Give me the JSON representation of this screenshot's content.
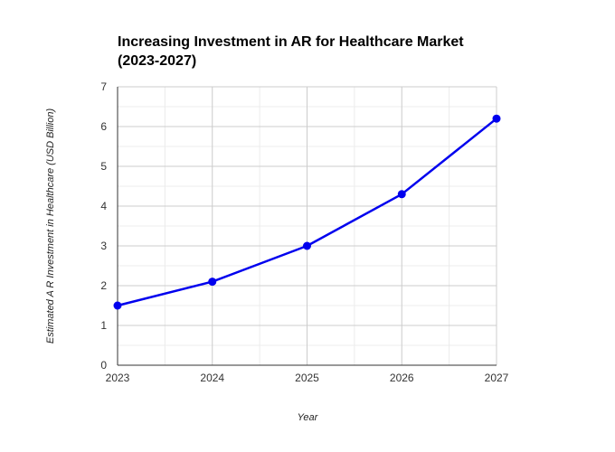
{
  "chart_data": {
    "type": "line",
    "title_lines": [
      "Increasing Investment in AR for Healthcare Market",
      "(2023-2027)"
    ],
    "xlabel": "Year",
    "ylabel": "Estimated A R Investment in Healthcare (USD Billion)",
    "x": [
      "2023",
      "2024",
      "2025",
      "2026",
      "2027"
    ],
    "series": [
      {
        "values": [
          1.5,
          2.1,
          3.0,
          4.3,
          6.2
        ],
        "color": "#0000ee"
      }
    ],
    "ylim": [
      0,
      7
    ],
    "yticks": [
      0,
      1,
      2,
      3,
      4,
      5,
      6,
      7
    ],
    "grid": true,
    "marker": "circle"
  }
}
